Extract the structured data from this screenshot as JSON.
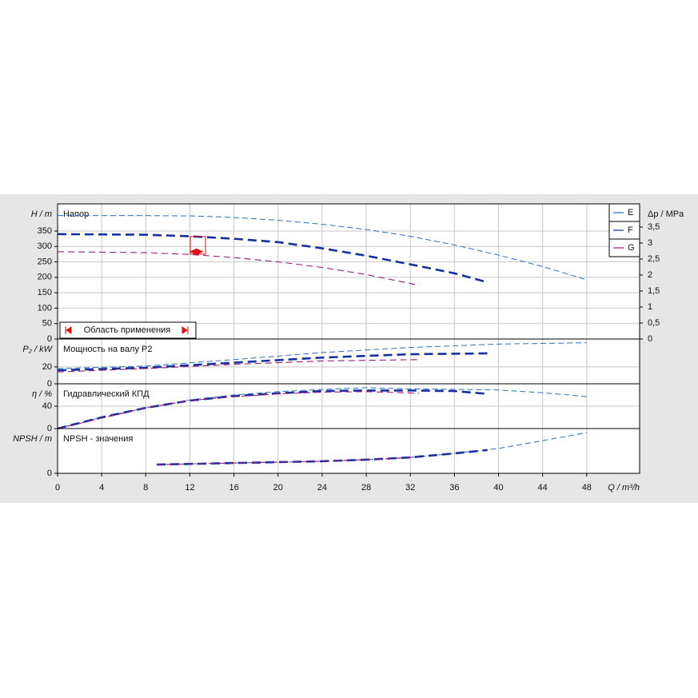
{
  "chart_data": [
    {
      "type": "line",
      "title": "Напор",
      "ylabel": "H / m",
      "y2label": "Δp / MPa",
      "xlim": [
        0,
        52.8
      ],
      "xticks": [
        0,
        4,
        8,
        12,
        16,
        20,
        24,
        28,
        32,
        36,
        40,
        44,
        48
      ],
      "ylim": [
        0,
        438
      ],
      "yticks": [
        0,
        50,
        100,
        150,
        200,
        250,
        300,
        350
      ],
      "y2lim": [
        0,
        4.225
      ],
      "y2ticks": [
        0,
        {
          "value": 0.5,
          "label": "0,5"
        },
        1,
        {
          "value": 1.5,
          "label": "1,5"
        },
        2,
        {
          "value": 2.5,
          "label": "2,5"
        },
        3,
        {
          "value": 3.5,
          "label": "3,5"
        }
      ],
      "grid": true,
      "legend": "upper right",
      "application_range": "Область применения",
      "duty_point": {
        "q": 12.6,
        "h": 283,
        "q_range": [
          12.04,
          13.42
        ],
        "h_range": [
          275,
          332
        ],
        "color": "#e01010"
      },
      "series": [
        {
          "name": "E",
          "color": "#2a6fbe",
          "x": [
            0,
            8,
            12,
            16,
            20,
            24,
            28,
            32,
            36,
            40,
            44,
            48
          ],
          "values": [
            400,
            400,
            399,
            394,
            385,
            372,
            355,
            333,
            305,
            272,
            235,
            192
          ]
        },
        {
          "name": "F",
          "color": "#1530a0",
          "x": [
            0,
            8,
            12,
            16,
            20,
            24,
            28,
            32,
            36,
            39
          ],
          "values": [
            340,
            338,
            333,
            325,
            314,
            294,
            270,
            242,
            213,
            184
          ]
        },
        {
          "name": "G",
          "color": "#9b1a78",
          "x": [
            0,
            8,
            12,
            16,
            20,
            24,
            28,
            32,
            32.8
          ],
          "values": [
            283,
            280,
            274,
            264,
            250,
            232,
            209,
            180,
            174
          ]
        }
      ]
    },
    {
      "type": "line",
      "title": "Мощность на валу P2",
      "ylabel": "P₂ / kW",
      "xlim": [
        0,
        52.8
      ],
      "xticks": [
        0,
        4,
        8,
        12,
        16,
        20,
        24,
        28,
        32,
        36,
        40,
        44,
        48
      ],
      "ylim": [
        0,
        53
      ],
      "yticks": [
        0,
        20
      ],
      "grid": true,
      "series": [
        {
          "color": "#2a6fbe",
          "x": [
            0,
            8,
            16,
            24,
            32,
            40,
            48
          ],
          "values": [
            18,
            21,
            28.6,
            37,
            43,
            47,
            48.6
          ]
        },
        {
          "color": "#1530a0",
          "x": [
            0,
            8,
            16,
            24,
            32,
            39
          ],
          "values": [
            16,
            19,
            25,
            31,
            35,
            36
          ]
        },
        {
          "color": "#9b1a78",
          "x": [
            0,
            8,
            16,
            24,
            32.8
          ],
          "values": [
            14,
            18,
            23,
            27,
            28.6
          ]
        }
      ]
    },
    {
      "type": "line",
      "title": "Гидравлический КПД",
      "ylabel": "η / %",
      "xlim": [
        0,
        52.8
      ],
      "xticks": [
        0,
        4,
        8,
        12,
        16,
        20,
        24,
        28,
        32,
        36,
        40,
        44,
        48
      ],
      "ylim": [
        0,
        80
      ],
      "yticks": [
        0,
        40
      ],
      "grid": true,
      "series": [
        {
          "color": "#2a6fbe",
          "x": [
            0,
            4,
            8,
            12,
            16,
            20,
            24,
            28,
            32,
            36,
            40,
            44,
            48
          ],
          "values": [
            0,
            20,
            37,
            51,
            60,
            66,
            70,
            73,
            71,
            70,
            69,
            64,
            57
          ]
        },
        {
          "color": "#1530a0",
          "x": [
            0,
            4,
            8,
            12,
            16,
            20,
            24,
            28,
            32,
            36,
            39
          ],
          "values": [
            0,
            20,
            37,
            50,
            58,
            63,
            67,
            68,
            68,
            67,
            62
          ]
        },
        {
          "color": "#9b1a78",
          "x": [
            0,
            8,
            12,
            16,
            20,
            24,
            28,
            32.8
          ],
          "values": [
            0,
            37,
            50,
            57,
            62,
            65,
            66,
            63
          ]
        }
      ]
    },
    {
      "type": "line",
      "title": "NPSH - значения",
      "ylabel": "NPSH / m",
      "xlabel": "Q / m³/h",
      "xlim": [
        0,
        52.8
      ],
      "xticks": [
        0,
        4,
        8,
        12,
        16,
        20,
        24,
        28,
        32,
        36,
        40,
        44,
        48
      ],
      "ylim": [
        0,
        20
      ],
      "yticks": [
        0
      ],
      "grid": true,
      "series": [
        {
          "color": "#2a6fbe",
          "x": [
            9,
            24,
            28,
            32,
            36,
            40,
            44,
            48
          ],
          "values": [
            3.9,
            5.4,
            6.1,
            7.1,
            8.9,
            11.1,
            14.6,
            18.2
          ]
        },
        {
          "color": "#1530a0",
          "x": [
            9,
            24,
            28,
            32,
            36,
            39
          ],
          "values": [
            3.9,
            5.4,
            6.1,
            7.1,
            8.9,
            10.4
          ]
        },
        {
          "color": "#9b1a78",
          "x": [
            9,
            24,
            28,
            32,
            32.8
          ],
          "values": [
            3.9,
            5.4,
            6.1,
            7.1,
            7.4
          ]
        }
      ]
    }
  ]
}
